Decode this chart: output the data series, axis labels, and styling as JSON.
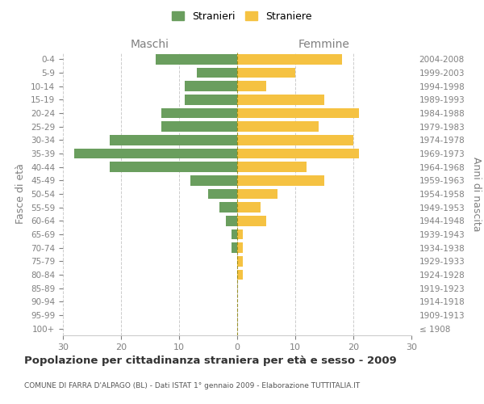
{
  "age_groups": [
    "100+",
    "95-99",
    "90-94",
    "85-89",
    "80-84",
    "75-79",
    "70-74",
    "65-69",
    "60-64",
    "55-59",
    "50-54",
    "45-49",
    "40-44",
    "35-39",
    "30-34",
    "25-29",
    "20-24",
    "15-19",
    "10-14",
    "5-9",
    "0-4"
  ],
  "birth_years": [
    "≤ 1908",
    "1909-1913",
    "1914-1918",
    "1919-1923",
    "1924-1928",
    "1929-1933",
    "1934-1938",
    "1939-1943",
    "1944-1948",
    "1949-1953",
    "1954-1958",
    "1959-1963",
    "1964-1968",
    "1969-1973",
    "1974-1978",
    "1979-1983",
    "1984-1988",
    "1989-1993",
    "1994-1998",
    "1999-2003",
    "2004-2008"
  ],
  "maschi": [
    0,
    0,
    0,
    0,
    0,
    0,
    1,
    1,
    2,
    3,
    5,
    8,
    22,
    28,
    22,
    13,
    13,
    9,
    9,
    7,
    14
  ],
  "femmine": [
    0,
    0,
    0,
    0,
    1,
    1,
    1,
    1,
    5,
    4,
    7,
    15,
    12,
    21,
    20,
    14,
    21,
    15,
    5,
    10,
    18
  ],
  "maschi_color": "#6a9e5e",
  "femmine_color": "#f5c242",
  "grid_color": "#cccccc",
  "tick_label_color": "#808080",
  "title": "Popolazione per cittadinanza straniera per età e sesso - 2009",
  "subtitle": "COMUNE DI FARRA D'ALPAGO (BL) - Dati ISTAT 1° gennaio 2009 - Elaborazione TUTTITALIA.IT",
  "ylabel_left": "Fasce di età",
  "ylabel_right": "Anni di nascita",
  "xlabel_maschi": "Maschi",
  "xlabel_femmine": "Femmine",
  "legend_maschi": "Stranieri",
  "legend_femmine": "Straniere",
  "xlim": 30,
  "background_color": "#ffffff"
}
